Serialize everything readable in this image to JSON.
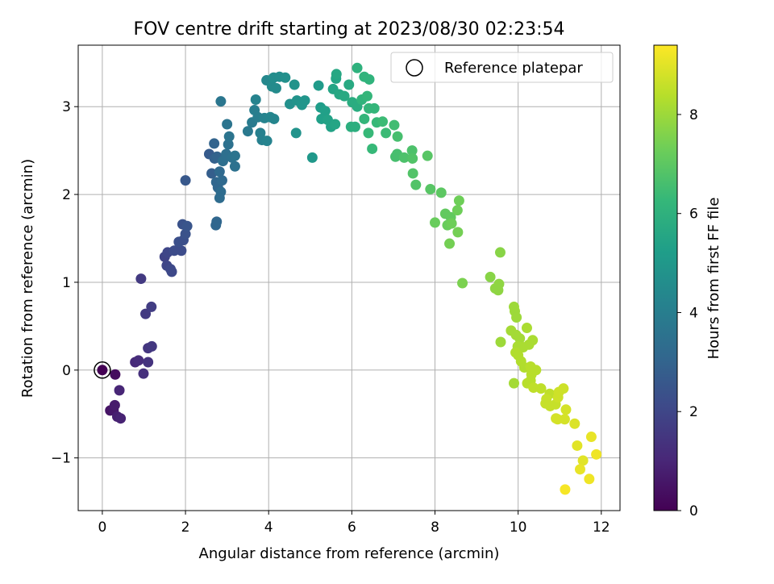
{
  "chart_data": {
    "type": "scatter",
    "title": "FOV centre drift starting at 2023/08/30 02:23:54",
    "xlabel": "Angular distance from reference (arcmin)",
    "ylabel": "Rotation from reference (arcmin)",
    "xlim": [
      -0.58,
      12.45
    ],
    "ylim": [
      -1.6,
      3.7
    ],
    "xticks": [
      "0",
      "2",
      "4",
      "6",
      "8",
      "10",
      "12"
    ],
    "yticks": [
      "−1",
      "0",
      "1",
      "2",
      "3"
    ],
    "grid": true,
    "legend": {
      "location": "upper right",
      "entries": [
        "Reference platepar"
      ]
    },
    "colorbar": {
      "label": "Hours from first FF file",
      "colormap": "viridis",
      "range": [
        0,
        9.4
      ],
      "ticks": [
        "0",
        "2",
        "4",
        "6",
        "8"
      ]
    },
    "reference_point": {
      "x": 0,
      "y": 0,
      "marker": "open-circle"
    },
    "points": [
      [
        0.0,
        0.0,
        0.0
      ],
      [
        0.31,
        -0.05,
        0.3
      ],
      [
        0.19,
        -0.46,
        0.5
      ],
      [
        0.27,
        -0.46,
        0.6
      ],
      [
        0.3,
        -0.4,
        0.7
      ],
      [
        0.36,
        -0.53,
        0.8
      ],
      [
        0.44,
        -0.55,
        0.9
      ],
      [
        0.41,
        -0.23,
        1.0
      ],
      [
        0.79,
        0.09,
        1.1
      ],
      [
        0.87,
        0.11,
        1.2
      ],
      [
        0.99,
        -0.04,
        1.3
      ],
      [
        1.1,
        0.09,
        1.4
      ],
      [
        1.1,
        0.25,
        1.5
      ],
      [
        1.19,
        0.27,
        1.55
      ],
      [
        1.04,
        0.64,
        1.6
      ],
      [
        1.18,
        0.72,
        1.7
      ],
      [
        0.93,
        1.04,
        1.6
      ],
      [
        1.5,
        1.29,
        1.9
      ],
      [
        1.57,
        1.34,
        2.0
      ],
      [
        1.55,
        1.19,
        2.0
      ],
      [
        1.64,
        1.15,
        2.1
      ],
      [
        1.67,
        1.12,
        2.1
      ],
      [
        1.73,
        1.36,
        2.2
      ],
      [
        1.9,
        1.36,
        2.2
      ],
      [
        1.84,
        1.46,
        2.3
      ],
      [
        1.95,
        1.48,
        2.3
      ],
      [
        2.0,
        1.55,
        2.4
      ],
      [
        1.93,
        1.66,
        2.4
      ],
      [
        2.04,
        1.64,
        2.5
      ],
      [
        2.0,
        2.16,
        2.6
      ],
      [
        2.57,
        2.46,
        2.7
      ],
      [
        2.63,
        2.24,
        2.8
      ],
      [
        2.7,
        2.41,
        2.9
      ],
      [
        2.76,
        2.43,
        3.0
      ],
      [
        2.69,
        2.58,
        3.0
      ],
      [
        2.74,
        2.14,
        3.1
      ],
      [
        2.78,
        2.08,
        3.1
      ],
      [
        2.82,
        2.26,
        3.2
      ],
      [
        2.88,
        2.16,
        3.2
      ],
      [
        2.85,
        2.03,
        3.3
      ],
      [
        2.82,
        1.96,
        3.3
      ],
      [
        2.73,
        1.65,
        3.1
      ],
      [
        2.75,
        1.69,
        3.1
      ],
      [
        2.9,
        2.38,
        3.4
      ],
      [
        2.98,
        2.46,
        3.4
      ],
      [
        3.03,
        2.57,
        3.5
      ],
      [
        3.12,
        2.42,
        3.5
      ],
      [
        3.19,
        2.44,
        3.6
      ],
      [
        3.19,
        2.32,
        3.5
      ],
      [
        3.05,
        2.66,
        3.6
      ],
      [
        3.0,
        2.8,
        3.6
      ],
      [
        2.85,
        3.06,
        3.7
      ],
      [
        3.5,
        2.72,
        3.8
      ],
      [
        3.6,
        2.82,
        3.9
      ],
      [
        3.66,
        2.96,
        4.0
      ],
      [
        3.74,
        2.88,
        4.0
      ],
      [
        3.8,
        2.7,
        4.1
      ],
      [
        3.84,
        2.62,
        4.1
      ],
      [
        3.96,
        2.61,
        4.2
      ],
      [
        3.9,
        2.87,
        4.2
      ],
      [
        4.04,
        2.88,
        4.3
      ],
      [
        4.13,
        2.86,
        4.3
      ],
      [
        3.69,
        3.08,
        4.2
      ],
      [
        3.95,
        3.3,
        4.4
      ],
      [
        4.08,
        3.23,
        4.5
      ],
      [
        4.18,
        3.21,
        4.5
      ],
      [
        4.12,
        3.33,
        4.6
      ],
      [
        4.26,
        3.34,
        4.6
      ],
      [
        4.4,
        3.33,
        4.7
      ],
      [
        4.51,
        3.03,
        4.7
      ],
      [
        4.62,
        3.25,
        4.8
      ],
      [
        4.68,
        3.07,
        4.8
      ],
      [
        4.8,
        3.02,
        4.9
      ],
      [
        4.87,
        3.07,
        4.9
      ],
      [
        4.66,
        2.7,
        4.8
      ],
      [
        5.05,
        2.42,
        5.0
      ],
      [
        5.2,
        3.24,
        5.1
      ],
      [
        5.25,
        2.99,
        5.2
      ],
      [
        5.36,
        2.95,
        5.3
      ],
      [
        5.27,
        2.86,
        5.3
      ],
      [
        5.42,
        2.85,
        5.4
      ],
      [
        5.5,
        2.77,
        5.4
      ],
      [
        5.6,
        2.8,
        5.5
      ],
      [
        5.62,
        3.32,
        5.5
      ],
      [
        5.63,
        3.37,
        5.6
      ],
      [
        5.55,
        3.2,
        5.5
      ],
      [
        5.7,
        3.14,
        5.6
      ],
      [
        5.82,
        3.12,
        5.7
      ],
      [
        5.93,
        3.25,
        5.7
      ],
      [
        6.01,
        3.05,
        5.8
      ],
      [
        6.13,
        3.0,
        5.8
      ],
      [
        5.98,
        2.77,
        5.9
      ],
      [
        6.08,
        2.77,
        5.9
      ],
      [
        6.13,
        3.44,
        6.0
      ],
      [
        6.3,
        3.34,
        6.1
      ],
      [
        6.42,
        3.31,
        6.1
      ],
      [
        6.24,
        3.08,
        6.1
      ],
      [
        6.37,
        3.12,
        6.2
      ],
      [
        6.41,
        2.98,
        6.2
      ],
      [
        6.54,
        2.98,
        6.2
      ],
      [
        6.3,
        2.86,
        6.2
      ],
      [
        6.4,
        2.7,
        6.3
      ],
      [
        6.49,
        2.52,
        6.3
      ],
      [
        6.6,
        2.82,
        6.3
      ],
      [
        6.74,
        2.83,
        6.4
      ],
      [
        6.82,
        2.7,
        6.4
      ],
      [
        7.02,
        2.79,
        6.5
      ],
      [
        7.1,
        2.66,
        6.6
      ],
      [
        7.05,
        2.43,
        6.6
      ],
      [
        7.09,
        2.46,
        6.6
      ],
      [
        7.26,
        2.42,
        6.7
      ],
      [
        7.45,
        2.5,
        6.7
      ],
      [
        7.46,
        2.41,
        6.8
      ],
      [
        7.47,
        2.24,
        6.8
      ],
      [
        7.54,
        2.11,
        6.8
      ],
      [
        7.82,
        2.44,
        6.9
      ],
      [
        7.89,
        2.06,
        6.9
      ],
      [
        8.15,
        2.02,
        7.0
      ],
      [
        8.25,
        1.78,
        7.1
      ],
      [
        8.38,
        1.74,
        7.1
      ],
      [
        8.0,
        1.68,
        7.2
      ],
      [
        8.3,
        1.65,
        7.2
      ],
      [
        8.4,
        1.67,
        7.3
      ],
      [
        8.54,
        1.82,
        7.3
      ],
      [
        8.58,
        1.93,
        7.3
      ],
      [
        8.55,
        1.57,
        7.4
      ],
      [
        8.35,
        1.44,
        7.4
      ],
      [
        8.66,
        0.99,
        7.5
      ],
      [
        9.33,
        1.06,
        7.7
      ],
      [
        9.45,
        0.93,
        7.8
      ],
      [
        9.52,
        0.91,
        7.8
      ],
      [
        9.54,
        0.98,
        7.8
      ],
      [
        9.57,
        1.34,
        7.7
      ],
      [
        9.9,
        0.72,
        8.0
      ],
      [
        9.92,
        0.67,
        8.0
      ],
      [
        9.96,
        0.6,
        8.0
      ],
      [
        9.83,
        0.45,
        8.1
      ],
      [
        9.95,
        0.4,
        8.1
      ],
      [
        10.04,
        0.36,
        8.1
      ],
      [
        10.21,
        0.48,
        8.2
      ],
      [
        10.35,
        0.34,
        8.2
      ],
      [
        10.26,
        0.29,
        8.2
      ],
      [
        10.12,
        0.26,
        8.2
      ],
      [
        9.99,
        0.27,
        8.2
      ],
      [
        9.94,
        0.2,
        8.3
      ],
      [
        10.0,
        0.17,
        8.3
      ],
      [
        10.07,
        0.1,
        8.3
      ],
      [
        10.15,
        0.03,
        8.3
      ],
      [
        10.3,
        0.04,
        8.4
      ],
      [
        10.32,
        -0.05,
        8.4
      ],
      [
        10.43,
        0.0,
        8.4
      ],
      [
        10.22,
        -0.15,
        8.4
      ],
      [
        10.3,
        -0.12,
        8.4
      ],
      [
        10.37,
        -0.2,
        8.5
      ],
      [
        10.55,
        -0.21,
        8.5
      ],
      [
        10.76,
        -0.27,
        8.5
      ],
      [
        10.68,
        -0.33,
        8.6
      ],
      [
        10.66,
        -0.38,
        8.6
      ],
      [
        10.77,
        -0.41,
        8.6
      ],
      [
        10.9,
        -0.39,
        8.6
      ],
      [
        10.96,
        -0.31,
        8.7
      ],
      [
        10.98,
        -0.25,
        8.7
      ],
      [
        11.09,
        -0.21,
        8.7
      ],
      [
        11.15,
        -0.45,
        8.8
      ],
      [
        10.91,
        -0.55,
        8.8
      ],
      [
        10.95,
        -0.56,
        8.8
      ],
      [
        11.12,
        -0.56,
        8.8
      ],
      [
        9.58,
        0.32,
        8.0
      ],
      [
        9.9,
        -0.15,
        8.1
      ],
      [
        11.36,
        -0.61,
        8.9
      ],
      [
        11.42,
        -0.86,
        9.0
      ],
      [
        11.56,
        -1.03,
        9.0
      ],
      [
        11.49,
        -1.13,
        9.1
      ],
      [
        11.76,
        -0.76,
        9.1
      ],
      [
        11.88,
        -0.96,
        9.2
      ],
      [
        11.71,
        -1.24,
        9.2
      ],
      [
        11.13,
        -1.36,
        9.3
      ]
    ]
  }
}
